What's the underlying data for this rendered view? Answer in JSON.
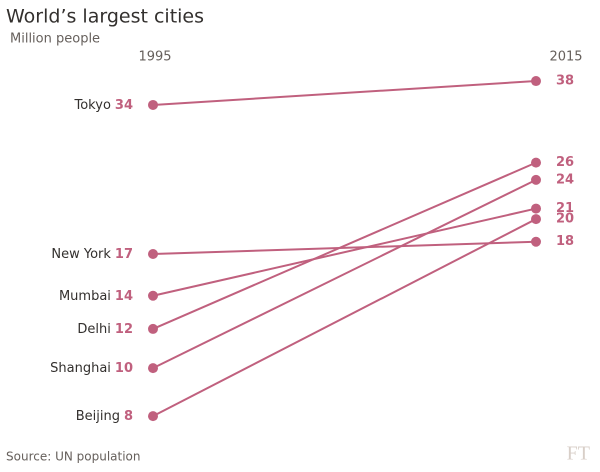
{
  "chart_data": {
    "type": "slope",
    "title": "World’s largest cities",
    "subtitle": "Million people",
    "source": "Source: UN population",
    "logo": "FT",
    "categories": [
      "1995",
      "2015"
    ],
    "log_scale": true,
    "ylim": [
      7.5,
      40
    ],
    "color": "#c0607e",
    "series": [
      {
        "name": "Tokyo",
        "values": [
          34,
          38
        ]
      },
      {
        "name": "New York",
        "values": [
          17,
          18
        ]
      },
      {
        "name": "Mumbai",
        "values": [
          14,
          21
        ]
      },
      {
        "name": "Delhi",
        "values": [
          12,
          26
        ]
      },
      {
        "name": "Shanghai",
        "values": [
          10,
          24
        ]
      },
      {
        "name": "Beijing",
        "values": [
          8,
          20
        ]
      }
    ]
  }
}
